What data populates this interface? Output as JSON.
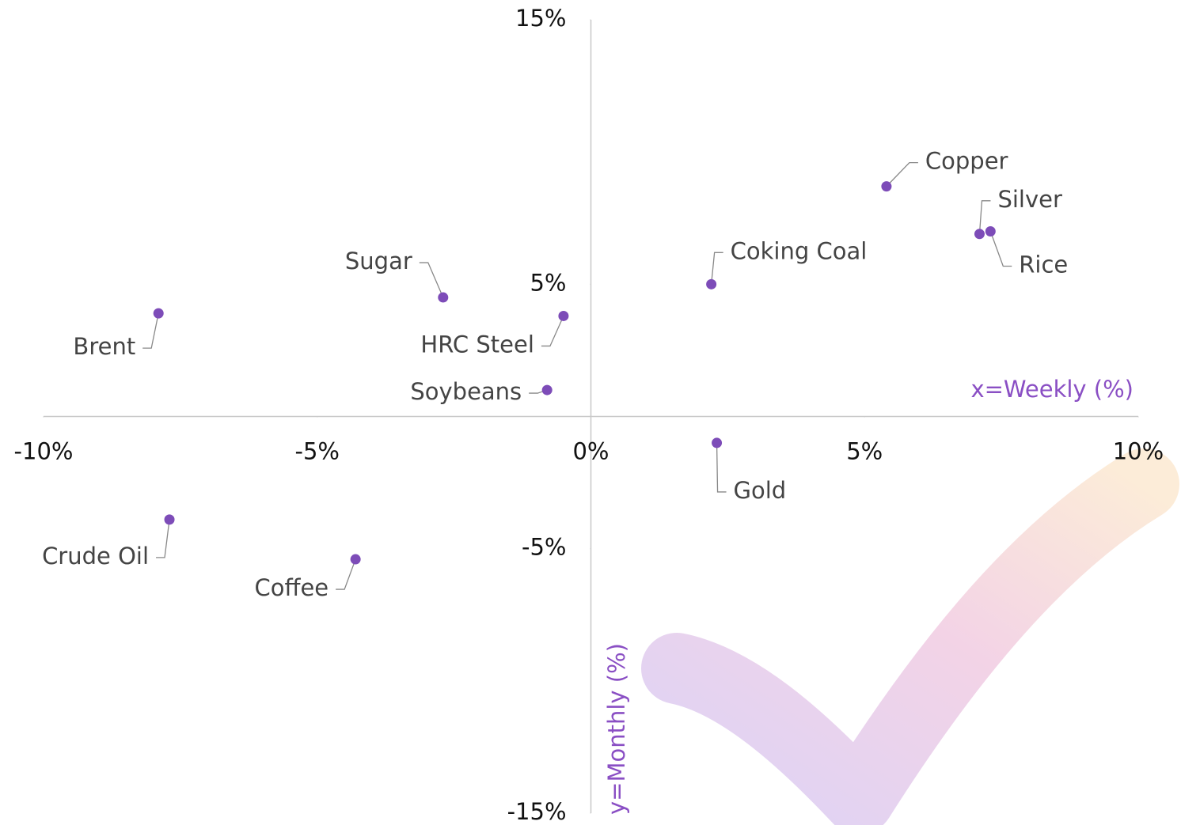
{
  "chart_data": {
    "type": "scatter",
    "x_label": "x=Weekly (%)",
    "y_label": "y=Monthly (%)",
    "color": "#7d4cb8",
    "xlim": [
      -10,
      10
    ],
    "ylim": [
      -15,
      15
    ],
    "xticks": [
      {
        "value": -10,
        "label": "-10%"
      },
      {
        "value": -5,
        "label": "-5%"
      },
      {
        "value": 0,
        "label": "0%"
      },
      {
        "value": 5,
        "label": "5%"
      },
      {
        "value": 10,
        "label": "10%"
      }
    ],
    "yticks": [
      {
        "value": 15,
        "label": "15%"
      },
      {
        "value": 5,
        "label": "5%"
      },
      {
        "value": -5,
        "label": "-5%"
      },
      {
        "value": -15,
        "label": "-15%"
      }
    ],
    "points": [
      {
        "label": "Brent",
        "x": -7.9,
        "y": 3.9
      },
      {
        "label": "Sugar",
        "x": -2.7,
        "y": 4.5
      },
      {
        "label": "HRC Steel",
        "x": -0.5,
        "y": 3.8
      },
      {
        "label": "Soybeans",
        "x": -0.8,
        "y": 1.0
      },
      {
        "label": "Coking Coal",
        "x": 2.2,
        "y": 5.0
      },
      {
        "label": "Copper",
        "x": 5.4,
        "y": 8.7
      },
      {
        "label": "Silver",
        "x": 7.1,
        "y": 6.9
      },
      {
        "label": "Rice",
        "x": 7.3,
        "y": 7.0
      },
      {
        "label": "Gold",
        "x": 2.3,
        "y": -1.0
      },
      {
        "label": "Crude Oil",
        "x": -7.7,
        "y": -3.9
      },
      {
        "label": "Coffee",
        "x": -4.3,
        "y": -5.4
      }
    ]
  }
}
